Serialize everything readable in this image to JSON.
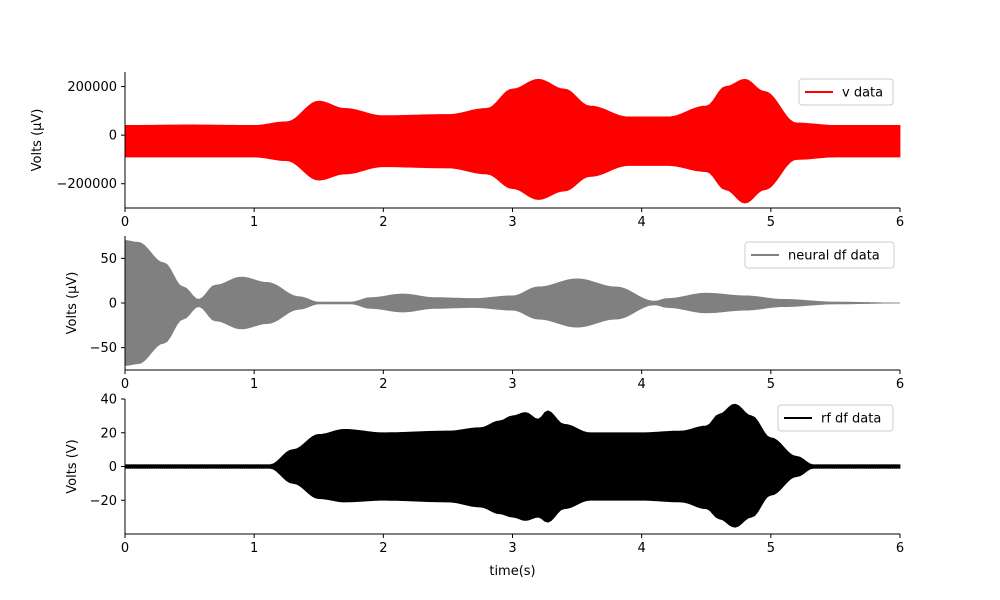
{
  "chart_data": [
    {
      "type": "line",
      "panel": "top",
      "ylabel": "Volts (μV)",
      "xlabel": "",
      "xlim": [
        0,
        6
      ],
      "ylim": [
        -300000,
        260000
      ],
      "xticks": [
        "0",
        "1",
        "2",
        "3",
        "4",
        "5",
        "6"
      ],
      "yticks": [
        {
          "value": 200000,
          "label": "200000"
        },
        {
          "value": 0,
          "label": "0"
        },
        {
          "value": -200000,
          "label": "−200000"
        }
      ],
      "legend_position": "top-right",
      "series": [
        {
          "name": "v data",
          "color": "#ff0000",
          "envelope_upper": {
            "t": [
              0,
              0.5,
              1.0,
              1.25,
              1.5,
              1.7,
              2.0,
              2.5,
              2.8,
              3.0,
              3.2,
              3.4,
              3.6,
              3.9,
              4.2,
              4.5,
              4.65,
              4.8,
              4.95,
              5.2,
              5.5,
              6.0
            ],
            "v": [
              40000,
              42000,
              40000,
              55000,
              140000,
              110000,
              80000,
              85000,
              110000,
              190000,
              230000,
              190000,
              120000,
              75000,
              75000,
              120000,
              200000,
              230000,
              180000,
              50000,
              40000,
              40000
            ]
          },
          "envelope_lower": {
            "t": [
              0,
              0.5,
              1.0,
              1.25,
              1.5,
              1.7,
              2.0,
              2.5,
              2.8,
              3.0,
              3.2,
              3.4,
              3.6,
              3.9,
              4.2,
              4.5,
              4.65,
              4.8,
              4.95,
              5.2,
              5.5,
              6.0
            ],
            "v": [
              -90000,
              -90000,
              -90000,
              -105000,
              -185000,
              -160000,
              -130000,
              -135000,
              -160000,
              -220000,
              -265000,
              -230000,
              -170000,
              -125000,
              -125000,
              -150000,
              -225000,
              -280000,
              -225000,
              -100000,
              -90000,
              -90000
            ]
          }
        }
      ]
    },
    {
      "type": "line",
      "panel": "middle",
      "ylabel": "Volts (μV)",
      "xlabel": "",
      "xlim": [
        0,
        6
      ],
      "ylim": [
        -75,
        75
      ],
      "xticks": [
        "0",
        "1",
        "2",
        "3",
        "4",
        "5",
        "6"
      ],
      "yticks": [
        {
          "value": 50,
          "label": "50"
        },
        {
          "value": 0,
          "label": "0"
        },
        {
          "value": -50,
          "label": "−50"
        }
      ],
      "legend_position": "top-right",
      "series": [
        {
          "name": "neural df data",
          "color": "#808080",
          "envelope_upper": {
            "t": [
              0,
              0.1,
              0.3,
              0.45,
              0.57,
              0.7,
              0.9,
              1.1,
              1.35,
              1.5,
              1.75,
              1.9,
              2.15,
              2.4,
              2.7,
              3.0,
              3.2,
              3.5,
              3.8,
              4.1,
              4.2,
              4.5,
              4.8,
              5.1,
              5.5,
              6.0
            ],
            "v": [
              70,
              68,
              45,
              18,
              4,
              20,
              29,
              23,
              7,
              1,
              1,
              6,
              10,
              6,
              5,
              8,
              18,
              27,
              18,
              2,
              5,
              11,
              8,
              4,
              1,
              0
            ]
          }
        }
      ]
    },
    {
      "type": "line",
      "panel": "bottom",
      "ylabel": "Volts (V)",
      "xlabel": "time(s)",
      "xlim": [
        0,
        6
      ],
      "ylim": [
        -40,
        40
      ],
      "xticks": [
        "0",
        "1",
        "2",
        "3",
        "4",
        "5",
        "6"
      ],
      "yticks": [
        {
          "value": 40,
          "label": "40"
        },
        {
          "value": 20,
          "label": "20"
        },
        {
          "value": 0,
          "label": "0"
        },
        {
          "value": -20,
          "label": "−20"
        }
      ],
      "legend_position": "top-right",
      "series": [
        {
          "name": "rf df data",
          "color": "#000000",
          "envelope_upper": {
            "t": [
              0,
              1.12,
              1.3,
              1.5,
              1.7,
              2.0,
              2.5,
              2.75,
              2.9,
              3.0,
              3.1,
              3.2,
              3.27,
              3.4,
              3.6,
              4.0,
              4.3,
              4.5,
              4.6,
              4.72,
              4.85,
              5.0,
              5.2,
              5.33,
              6.0
            ],
            "v": [
              1,
              1,
              10,
              19,
              22,
              20,
              21,
              23,
              27,
              30,
              32,
              28,
              33,
              25,
              20,
              20,
              21,
              24,
              31,
              37,
              30,
              17,
              6,
              1,
              1
            ]
          },
          "envelope_lower": {
            "t": [
              0,
              1.12,
              1.3,
              1.5,
              1.7,
              2.0,
              2.5,
              2.75,
              2.9,
              3.0,
              3.1,
              3.2,
              3.27,
              3.4,
              3.6,
              4.0,
              4.3,
              4.5,
              4.6,
              4.72,
              4.85,
              5.0,
              5.2,
              5.33,
              6.0
            ],
            "v": [
              -1,
              -1,
              -10,
              -19,
              -21,
              -20,
              -21,
              -24,
              -28,
              -30,
              -32,
              -30,
              -33,
              -25,
              -20,
              -20,
              -21,
              -25,
              -31,
              -36,
              -30,
              -17,
              -6,
              -1,
              -1
            ]
          }
        }
      ]
    }
  ]
}
